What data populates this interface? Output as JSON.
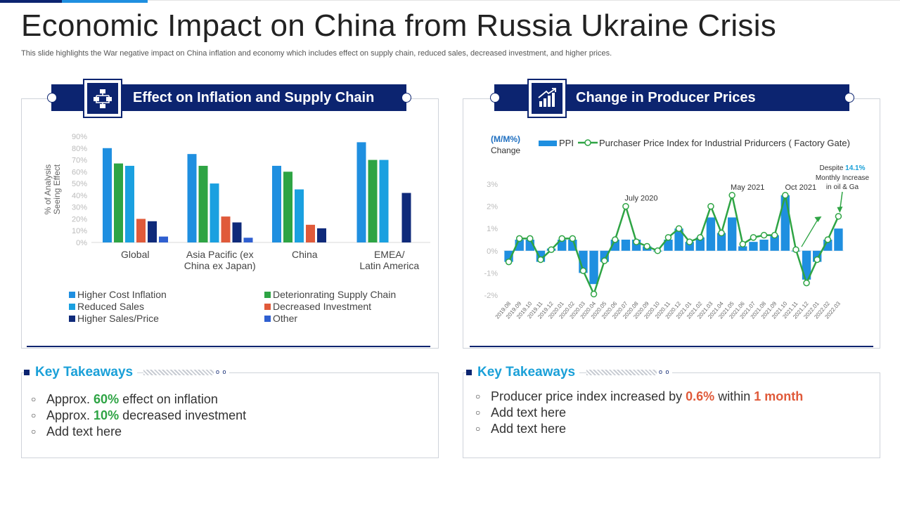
{
  "title": "Economic Impact on China from Russia Ukraine Crisis",
  "subtitle": "This slide highlights the War negative impact on China inflation and economy which includes effect on supply chain, reduced sales, decreased investment, and higher prices.",
  "left_panel": {
    "banner": "Effect on Inflation and Supply Chain",
    "icon": "flowchart-icon",
    "takeaways_title": "Key Takeaways",
    "takeaways": [
      {
        "pre": "Approx. ",
        "hl": "60%",
        "post": " effect on inflation"
      },
      {
        "pre": "Approx. ",
        "hl": "10%",
        "post": " decreased investment"
      },
      {
        "pre": "Add text here",
        "hl": "",
        "post": ""
      }
    ]
  },
  "right_panel": {
    "banner": "Change in Producer Prices",
    "icon": "bar-chart-up-icon",
    "takeaways_title": "Key Takeaways",
    "takeaways": [
      {
        "pre": "Producer price index increased by ",
        "hl": "0.6%",
        "mid": " within ",
        "hl2": "1 month"
      },
      {
        "pre": "Add text here",
        "hl": "",
        "mid": "",
        "hl2": ""
      },
      {
        "pre": "Add text here",
        "hl": "",
        "mid": "",
        "hl2": ""
      }
    ]
  },
  "colors": {
    "navy": "#0c2470",
    "blue": "#1f8fe0",
    "green": "#2ea444",
    "cyan": "#1aa0d8",
    "red": "#e05a3a",
    "dark_navy": "#0f2a7a",
    "royal": "#2f5fd0"
  },
  "chart_data": [
    {
      "type": "bar",
      "title": "",
      "ylabel": "% of Analysis Seeing Effect",
      "ylim": [
        0,
        90
      ],
      "yticks": [
        "0%",
        "10%",
        "20%",
        "30%",
        "40%",
        "50%",
        "60%",
        "70%",
        "80%",
        "90%"
      ],
      "categories": [
        "Global",
        "Asia Pacific (ex China ex Japan)",
        "China",
        "EMEA/ Latin America"
      ],
      "series": [
        {
          "name": "Higher Cost Inflation",
          "color": "#1f8fe0",
          "values": [
            80,
            75,
            65,
            85
          ]
        },
        {
          "name": "Deterionrating Supply Chain",
          "color": "#2ea444",
          "values": [
            67,
            65,
            60,
            70
          ]
        },
        {
          "name": "Reduced Sales",
          "color": "#1aa0e0",
          "values": [
            65,
            50,
            45,
            70
          ]
        },
        {
          "name": "Decreased Investment",
          "color": "#e05a3a",
          "values": [
            20,
            22,
            15,
            null
          ]
        },
        {
          "name": "Higher Sales/Price",
          "color": "#0f2a7a",
          "values": [
            18,
            17,
            12,
            42
          ]
        },
        {
          "name": "Other",
          "color": "#2f5fd0",
          "values": [
            5,
            4,
            null,
            null
          ]
        }
      ],
      "legend_position": "bottom"
    },
    {
      "type": "bar+line",
      "ylabel": "(M/M%)",
      "ylabel2": "Change",
      "ylim": [
        -2,
        3
      ],
      "yticks": [
        "-2%",
        "-1%",
        "0%",
        "1%",
        "2%",
        "3%"
      ],
      "x": [
        "2019.08",
        "2019.09",
        "2019.10",
        "2019.11",
        "2019.12",
        "2020.01",
        "2020.02",
        "2020.03",
        "2020.04",
        "2020.05",
        "2020.06",
        "2020.07",
        "2020.08",
        "2020.09",
        "2020.10",
        "2020.11",
        "2020.12",
        "2021.01",
        "2021.02",
        "2021.03",
        "2021.04",
        "2021.05",
        "2021.06",
        "2021.07",
        "2021.08",
        "2021.09",
        "2021.10",
        "2021.11",
        "2021.12",
        "2022.01",
        "2022.02",
        "2022.03"
      ],
      "series": [
        {
          "name": "PPI",
          "kind": "bar",
          "color": "#1f8fe0",
          "values": [
            -0.5,
            0.5,
            0.5,
            -0.5,
            0.1,
            0.5,
            0.5,
            -1.0,
            -1.5,
            -0.5,
            0.5,
            0.5,
            0.5,
            0.2,
            0.0,
            0.5,
            1.0,
            0.4,
            0.6,
            1.5,
            0.8,
            1.5,
            0.2,
            0.4,
            0.5,
            0.7,
            2.5,
            0.0,
            -1.3,
            -0.5,
            0.5,
            1.0
          ]
        },
        {
          "name": "Purchaser Price Index for Industrial Pridurcers ( Factory Gate)",
          "kind": "line",
          "color": "#2ea444",
          "values": [
            -0.5,
            0.55,
            0.55,
            -0.4,
            0.05,
            0.55,
            0.55,
            -0.9,
            -1.95,
            -0.45,
            0.5,
            2.0,
            0.4,
            0.2,
            0.0,
            0.6,
            1.0,
            0.4,
            0.6,
            2.0,
            0.8,
            2.5,
            0.3,
            0.6,
            0.7,
            0.7,
            2.5,
            0.05,
            -1.45,
            -0.4,
            0.5,
            1.55
          ]
        }
      ],
      "annotations": [
        {
          "label": "July 2020",
          "index": 11
        },
        {
          "label": "May 2021",
          "index": 21
        },
        {
          "label": "Oct 2021",
          "index": 26
        }
      ],
      "callout": {
        "pre": "Despite ",
        "hl": "14.1%",
        "line2": "Monthly Increase",
        "line3": "in oil & Ga"
      }
    }
  ]
}
